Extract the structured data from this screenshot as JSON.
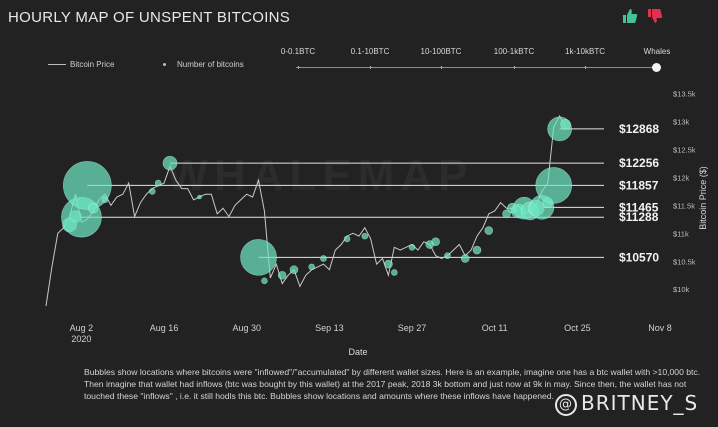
{
  "page": {
    "title": "HOURLY MAP OF UNSPENT BITCOINS",
    "background_watermark": "WHALEMAP",
    "caption": "Bubbles show locations where bitcoins were \"inflowed\"/\"accumulated\" by different wallet sizes. Here is an example, imagine one has a btc wallet with >10,000 btc. Then imagine that wallet had inflows (btc was bought by this wallet) at the 2017 peak, 2018 3k bottom and just now at 9k in may. Since then, the wallet has not touched these \"inflows\" , i.e. it still hodls this btc. Bubbles show locations and amounts where these inflows have happened.",
    "watermark": "BRITNEY_S",
    "watermark_symbol": "@",
    "icons": {
      "like": "thumbs-up-icon",
      "dislike": "thumbs-down-icon"
    },
    "colors": {
      "background": "#222223",
      "bubble": "#6ee6c0",
      "price_line": "#c8c8c8",
      "like": "#41c29a",
      "dislike": "#e0314f"
    }
  },
  "legend": {
    "price_label": "Bitcoin Price",
    "bubbles_label": "Number of bitcoins"
  },
  "wallet_sizes": {
    "options": [
      "0-0.1BTC",
      "0.1-10BTC",
      "10-100BTC",
      "100-1kBTC",
      "1k-10kBTC",
      "Whales"
    ],
    "selected": "Whales"
  },
  "chart_data": {
    "type": "scatter",
    "title": "HOURLY MAP OF UNSPENT BITCOINS",
    "xlabel": "Date",
    "ylabel": "Bitcoin Price ($)",
    "x_ticks": [
      "Aug 2\n2020",
      "Aug 16",
      "Aug 30",
      "Sep 13",
      "Sep 27",
      "Oct 11",
      "Oct 25",
      "Nov 8"
    ],
    "x_tick_dates": [
      "2020-08-02",
      "2020-08-16",
      "2020-08-30",
      "2020-09-13",
      "2020-09-27",
      "2020-10-11",
      "2020-10-25",
      "2020-11-08"
    ],
    "x_range": [
      "2020-07-27",
      "2020-11-08"
    ],
    "y_ticks": [
      "$10k",
      "$10.5k",
      "$11k",
      "$11.5k",
      "$12k",
      "$12.5k",
      "$13k",
      "$13.5k"
    ],
    "y_tick_values": [
      10000,
      10500,
      11000,
      11500,
      12000,
      12500,
      13000,
      13500
    ],
    "ylim": [
      9700,
      13600
    ],
    "price_series": {
      "name": "Bitcoin Price",
      "points": [
        [
          "2020-07-27",
          9700
        ],
        [
          "2020-07-28",
          10400
        ],
        [
          "2020-07-29",
          11000
        ],
        [
          "2020-07-30",
          11100
        ],
        [
          "2020-07-31",
          11300
        ],
        [
          "2020-08-01",
          11700
        ],
        [
          "2020-08-02",
          11200
        ],
        [
          "2020-08-03",
          11250
        ],
        [
          "2020-08-04",
          11400
        ],
        [
          "2020-08-05",
          11600
        ],
        [
          "2020-08-06",
          11700
        ],
        [
          "2020-08-07",
          11500
        ],
        [
          "2020-08-08",
          11650
        ],
        [
          "2020-08-09",
          11700
        ],
        [
          "2020-08-10",
          11900
        ],
        [
          "2020-08-11",
          11300
        ],
        [
          "2020-08-12",
          11550
        ],
        [
          "2020-08-13",
          11700
        ],
        [
          "2020-08-14",
          11800
        ],
        [
          "2020-08-15",
          11850
        ],
        [
          "2020-08-16",
          11900
        ],
        [
          "2020-08-17",
          12200
        ],
        [
          "2020-08-18",
          11950
        ],
        [
          "2020-08-19",
          11800
        ],
        [
          "2020-08-20",
          11800
        ],
        [
          "2020-08-21",
          11600
        ],
        [
          "2020-08-22",
          11650
        ],
        [
          "2020-08-23",
          11700
        ],
        [
          "2020-08-24",
          11700
        ],
        [
          "2020-08-25",
          11350
        ],
        [
          "2020-08-26",
          11450
        ],
        [
          "2020-08-27",
          11300
        ],
        [
          "2020-08-28",
          11500
        ],
        [
          "2020-08-29",
          11600
        ],
        [
          "2020-08-30",
          11700
        ],
        [
          "2020-08-31",
          11650
        ],
        [
          "2020-09-01",
          11950
        ],
        [
          "2020-09-02",
          11400
        ],
        [
          "2020-09-03",
          10200
        ],
        [
          "2020-09-04",
          10450
        ],
        [
          "2020-09-05",
          10100
        ],
        [
          "2020-09-06",
          10250
        ],
        [
          "2020-09-07",
          10350
        ],
        [
          "2020-09-08",
          10050
        ],
        [
          "2020-09-09",
          10250
        ],
        [
          "2020-09-10",
          10350
        ],
        [
          "2020-09-11",
          10400
        ],
        [
          "2020-09-12",
          10450
        ],
        [
          "2020-09-13",
          10350
        ],
        [
          "2020-09-14",
          10700
        ],
        [
          "2020-09-15",
          10800
        ],
        [
          "2020-09-16",
          10950
        ],
        [
          "2020-09-17",
          11000
        ],
        [
          "2020-09-18",
          10950
        ],
        [
          "2020-09-19",
          11100
        ],
        [
          "2020-09-20",
          10900
        ],
        [
          "2020-09-21",
          10450
        ],
        [
          "2020-09-22",
          10550
        ],
        [
          "2020-09-23",
          10250
        ],
        [
          "2020-09-24",
          10750
        ],
        [
          "2020-09-25",
          10700
        ],
        [
          "2020-09-26",
          10750
        ],
        [
          "2020-09-27",
          10800
        ],
        [
          "2020-09-28",
          10700
        ],
        [
          "2020-09-29",
          10850
        ],
        [
          "2020-09-30",
          10800
        ],
        [
          "2020-10-01",
          10600
        ],
        [
          "2020-10-02",
          10550
        ],
        [
          "2020-10-03",
          10600
        ],
        [
          "2020-10-04",
          10700
        ],
        [
          "2020-10-05",
          10800
        ],
        [
          "2020-10-06",
          10600
        ],
        [
          "2020-10-07",
          10700
        ],
        [
          "2020-10-08",
          10950
        ],
        [
          "2020-10-09",
          11100
        ],
        [
          "2020-10-10",
          11350
        ],
        [
          "2020-10-11",
          11400
        ],
        [
          "2020-10-12",
          11550
        ],
        [
          "2020-10-13",
          11450
        ],
        [
          "2020-10-14",
          11450
        ],
        [
          "2020-10-15",
          11500
        ],
        [
          "2020-10-16",
          11350
        ],
        [
          "2020-10-17",
          11400
        ],
        [
          "2020-10-18",
          11500
        ],
        [
          "2020-10-19",
          11750
        ],
        [
          "2020-10-20",
          11900
        ],
        [
          "2020-10-21",
          12900
        ],
        [
          "2020-10-22",
          13100
        ],
        [
          "2020-10-23",
          12900
        ]
      ]
    },
    "bubble_series": {
      "name": "Number of bitcoins",
      "points": [
        {
          "x": "2020-07-31",
          "y": 11150,
          "r": 7
        },
        {
          "x": "2020-08-01",
          "y": 11300,
          "r": 6
        },
        {
          "x": "2020-08-02",
          "y": 11288,
          "r": 20
        },
        {
          "x": "2020-08-03",
          "y": 11857,
          "r": 24
        },
        {
          "x": "2020-08-04",
          "y": 11450,
          "r": 5
        },
        {
          "x": "2020-08-06",
          "y": 11600,
          "r": 3
        },
        {
          "x": "2020-08-14",
          "y": 11750,
          "r": 3
        },
        {
          "x": "2020-08-15",
          "y": 11900,
          "r": 3
        },
        {
          "x": "2020-08-17",
          "y": 12256,
          "r": 7
        },
        {
          "x": "2020-08-22",
          "y": 11650,
          "r": 2
        },
        {
          "x": "2020-09-01",
          "y": 10570,
          "r": 18
        },
        {
          "x": "2020-09-02",
          "y": 10150,
          "r": 3
        },
        {
          "x": "2020-09-05",
          "y": 10250,
          "r": 4
        },
        {
          "x": "2020-09-07",
          "y": 10350,
          "r": 4
        },
        {
          "x": "2020-09-10",
          "y": 10400,
          "r": 3
        },
        {
          "x": "2020-09-12",
          "y": 10550,
          "r": 3
        },
        {
          "x": "2020-09-16",
          "y": 10900,
          "r": 3
        },
        {
          "x": "2020-09-19",
          "y": 10950,
          "r": 3
        },
        {
          "x": "2020-09-23",
          "y": 10450,
          "r": 4
        },
        {
          "x": "2020-09-24",
          "y": 10300,
          "r": 3
        },
        {
          "x": "2020-09-27",
          "y": 10750,
          "r": 3
        },
        {
          "x": "2020-09-30",
          "y": 10800,
          "r": 4
        },
        {
          "x": "2020-10-01",
          "y": 10850,
          "r": 4
        },
        {
          "x": "2020-10-03",
          "y": 10600,
          "r": 3
        },
        {
          "x": "2020-10-06",
          "y": 10550,
          "r": 4
        },
        {
          "x": "2020-10-08",
          "y": 10700,
          "r": 4
        },
        {
          "x": "2020-10-10",
          "y": 11050,
          "r": 4
        },
        {
          "x": "2020-10-13",
          "y": 11350,
          "r": 4
        },
        {
          "x": "2020-10-14",
          "y": 11450,
          "r": 5
        },
        {
          "x": "2020-10-15",
          "y": 11400,
          "r": 7
        },
        {
          "x": "2020-10-16",
          "y": 11450,
          "r": 11
        },
        {
          "x": "2020-10-17",
          "y": 11400,
          "r": 9
        },
        {
          "x": "2020-10-18",
          "y": 11450,
          "r": 8
        },
        {
          "x": "2020-10-19",
          "y": 11465,
          "r": 12
        },
        {
          "x": "2020-10-20",
          "y": 11550,
          "r": 5
        },
        {
          "x": "2020-10-21",
          "y": 11857,
          "r": 18
        },
        {
          "x": "2020-10-22",
          "y": 12868,
          "r": 12
        },
        {
          "x": "2020-10-23",
          "y": 12950,
          "r": 5
        }
      ]
    },
    "levels": [
      {
        "label": "$12868",
        "value": 12868,
        "from": "2020-10-22"
      },
      {
        "label": "$12256",
        "value": 12256,
        "from": "2020-08-17"
      },
      {
        "label": "$11857",
        "value": 11857,
        "from": "2020-08-03"
      },
      {
        "label": "$11465",
        "value": 11465,
        "from": "2020-10-19"
      },
      {
        "label": "$11288",
        "value": 11288,
        "from": "2020-08-02"
      },
      {
        "label": "$10570",
        "value": 10570,
        "from": "2020-09-01"
      }
    ],
    "grid": false,
    "legend_position": "top-left"
  }
}
